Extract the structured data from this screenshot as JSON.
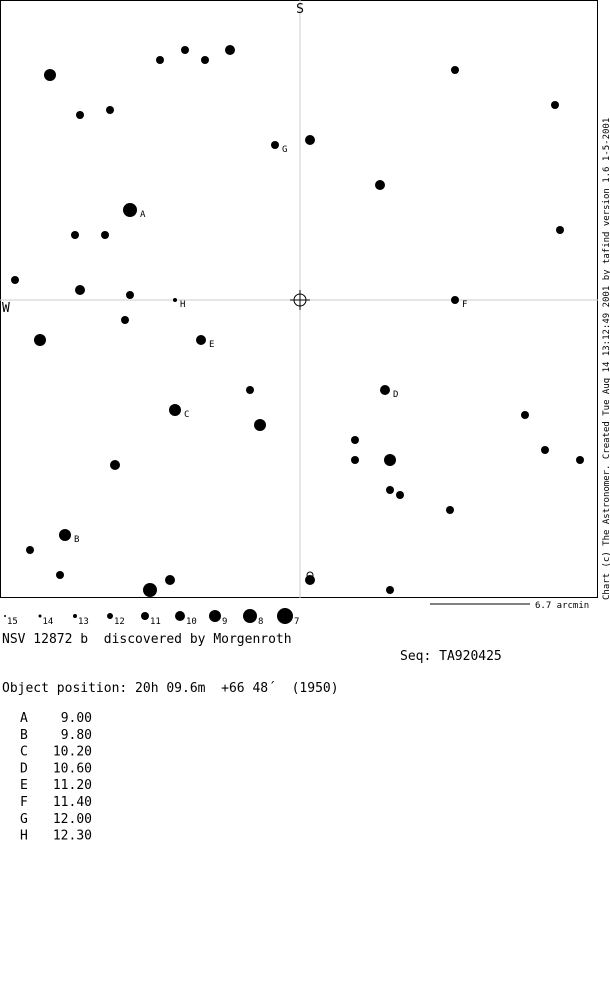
{
  "header": {
    "south": "S",
    "west": "W",
    "credit": "Chart (c) The Astronomer. Created Tue Aug 14 13:12:49 2001 by tafind version 1.6 1-5-2001"
  },
  "scale": "6.7 arcmin",
  "magnitude_legend": [
    "15",
    "14",
    "13",
    "12",
    "11",
    "10",
    "9",
    "8",
    "7"
  ],
  "object": {
    "name": "NSV 12872 b  discovered by Morgenroth",
    "sequence": "Seq: TA920425",
    "position": "Object position: 20h 09.6m  +66 48´  (1950)"
  },
  "comparison_stars": [
    {
      "label": "A",
      "magnitude": "9.00"
    },
    {
      "label": "B",
      "magnitude": "9.80"
    },
    {
      "label": "C",
      "magnitude": "10.20"
    },
    {
      "label": "D",
      "magnitude": "10.60"
    },
    {
      "label": "E",
      "magnitude": "11.20"
    },
    {
      "label": "F",
      "magnitude": "11.40"
    },
    {
      "label": "G",
      "magnitude": "12.00"
    },
    {
      "label": "H",
      "magnitude": "12.30"
    }
  ]
}
